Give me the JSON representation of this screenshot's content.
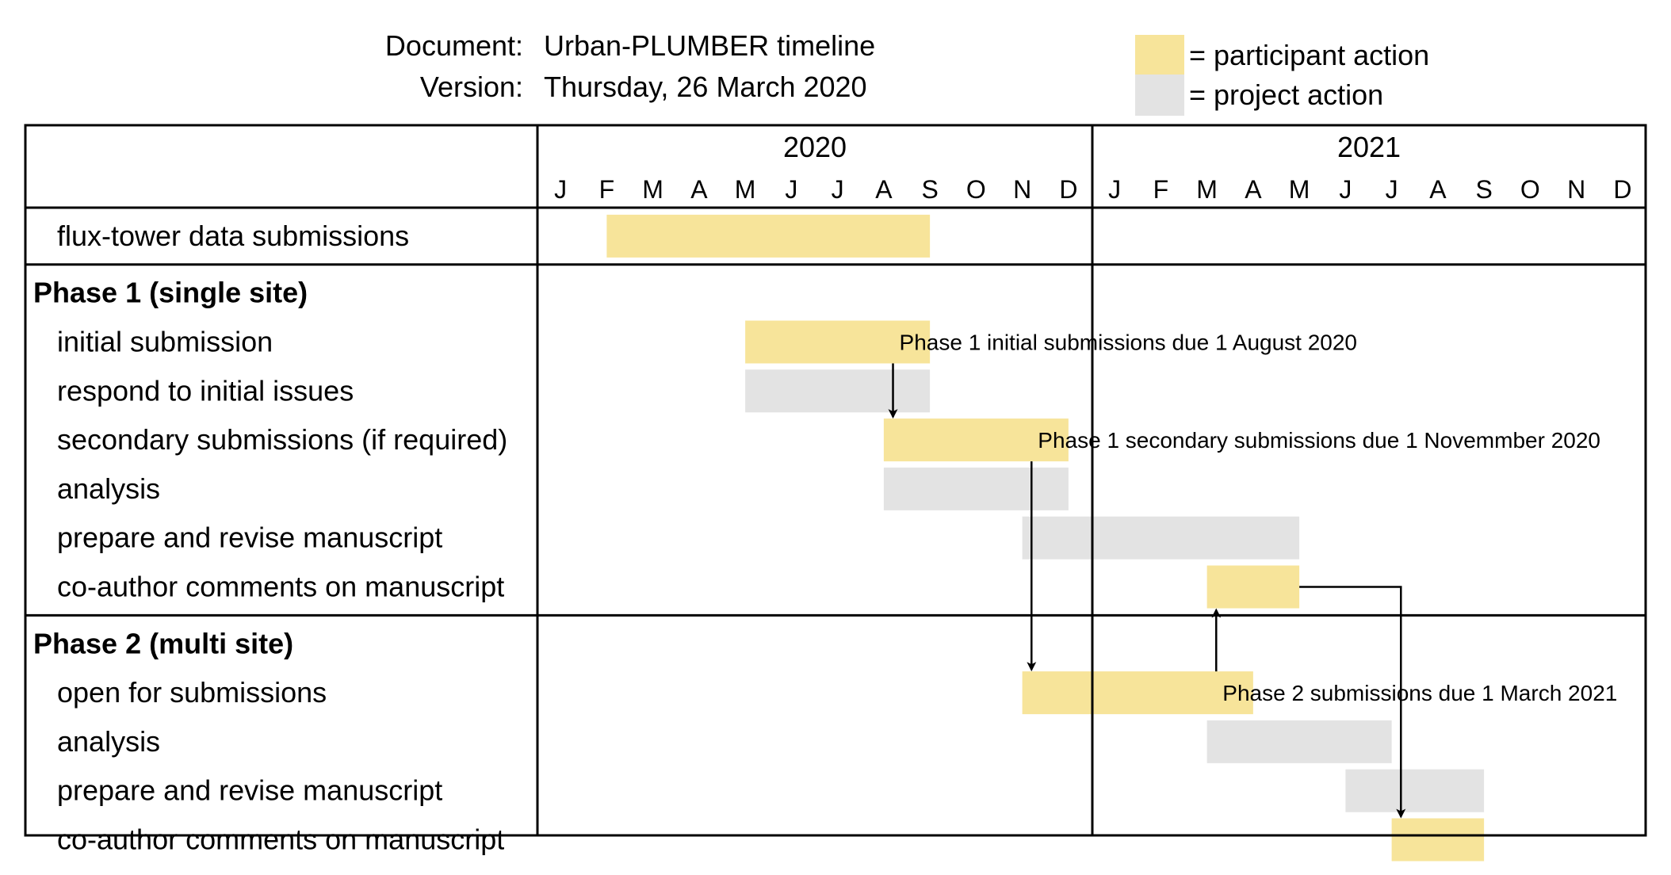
{
  "header": {
    "document_label": "Document:",
    "document_value": "Urban-PLUMBER timeline",
    "version_label": "Version:",
    "version_value": "Thursday, 26 March 2020"
  },
  "legend": [
    {
      "label": "= participant action",
      "color": "#F7E49A"
    },
    {
      "label": "= project action",
      "color": "#E3E3E3"
    }
  ],
  "colors": {
    "participant": "#F7E49A",
    "project": "#E3E3E3",
    "grid": "#000000"
  },
  "timeline": {
    "years": [
      "2020",
      "2021"
    ],
    "months": [
      "J",
      "F",
      "M",
      "A",
      "M",
      "J",
      "J",
      "A",
      "S",
      "O",
      "N",
      "D",
      "J",
      "F",
      "M",
      "A",
      "M",
      "J",
      "J",
      "A",
      "S",
      "O",
      "N",
      "D"
    ]
  },
  "sections": [
    {
      "rows": [
        {
          "label": "flux-tower data submissions",
          "bold": false
        }
      ]
    },
    {
      "rows": [
        {
          "label": "Phase 1 (single site)",
          "bold": true
        },
        {
          "label": "initial submission",
          "bold": false
        },
        {
          "label": "respond to initial issues",
          "bold": false
        },
        {
          "label": "secondary submissions (if required)",
          "bold": false
        },
        {
          "label": "analysis",
          "bold": false
        },
        {
          "label": "prepare and revise manuscript",
          "bold": false
        },
        {
          "label": "co-author comments on manuscript",
          "bold": false
        }
      ]
    },
    {
      "rows": [
        {
          "label": "Phase 2 (multi site)",
          "bold": true
        },
        {
          "label": "open for submissions",
          "bold": false
        },
        {
          "label": "analysis",
          "bold": false
        },
        {
          "label": "prepare and revise manuscript",
          "bold": false
        },
        {
          "label": "co-author comments on manuscript",
          "bold": false
        }
      ]
    }
  ],
  "tasks": [
    {
      "name": "flux-tower data submissions",
      "type": "participant",
      "start": 1.5,
      "end": 8.5
    },
    {
      "name": "initial submission",
      "type": "participant",
      "start": 4.5,
      "end": 8.5
    },
    {
      "name": "respond to initial issues",
      "type": "project",
      "start": 4.5,
      "end": 8.5
    },
    {
      "name": "secondary submissions (if required)",
      "type": "participant",
      "start": 7.5,
      "end": 11.5
    },
    {
      "name": "analysis (Phase 1)",
      "type": "project",
      "start": 7.5,
      "end": 11.5
    },
    {
      "name": "prepare and revise manuscript (Phase 1)",
      "type": "project",
      "start": 10.5,
      "end": 16.5
    },
    {
      "name": "co-author comments on manuscript (Phase 1)",
      "type": "participant",
      "start": 14.5,
      "end": 16.5
    },
    {
      "name": "open for submissions",
      "type": "participant",
      "start": 10.5,
      "end": 15.5
    },
    {
      "name": "analysis (Phase 2)",
      "type": "project",
      "start": 14.5,
      "end": 18.5
    },
    {
      "name": "prepare and revise manuscript (Phase 2)",
      "type": "project",
      "start": 17.5,
      "end": 20.5
    },
    {
      "name": "co-author comments on manuscript (Phase 2)",
      "type": "participant",
      "start": 18.5,
      "end": 20.5
    }
  ],
  "annotations": [
    {
      "text": "Phase 1 initial submissions due 1 August 2020",
      "row": "initial submission",
      "x": 7.7
    },
    {
      "text": "Phase 1 secondary submissions due 1 Novemmber 2020",
      "row": "secondary submissions (if required)",
      "x": 10.7
    },
    {
      "text": "Phase 2 submissions due 1 March 2021",
      "row": "open for submissions",
      "x": 14.7
    }
  ]
}
